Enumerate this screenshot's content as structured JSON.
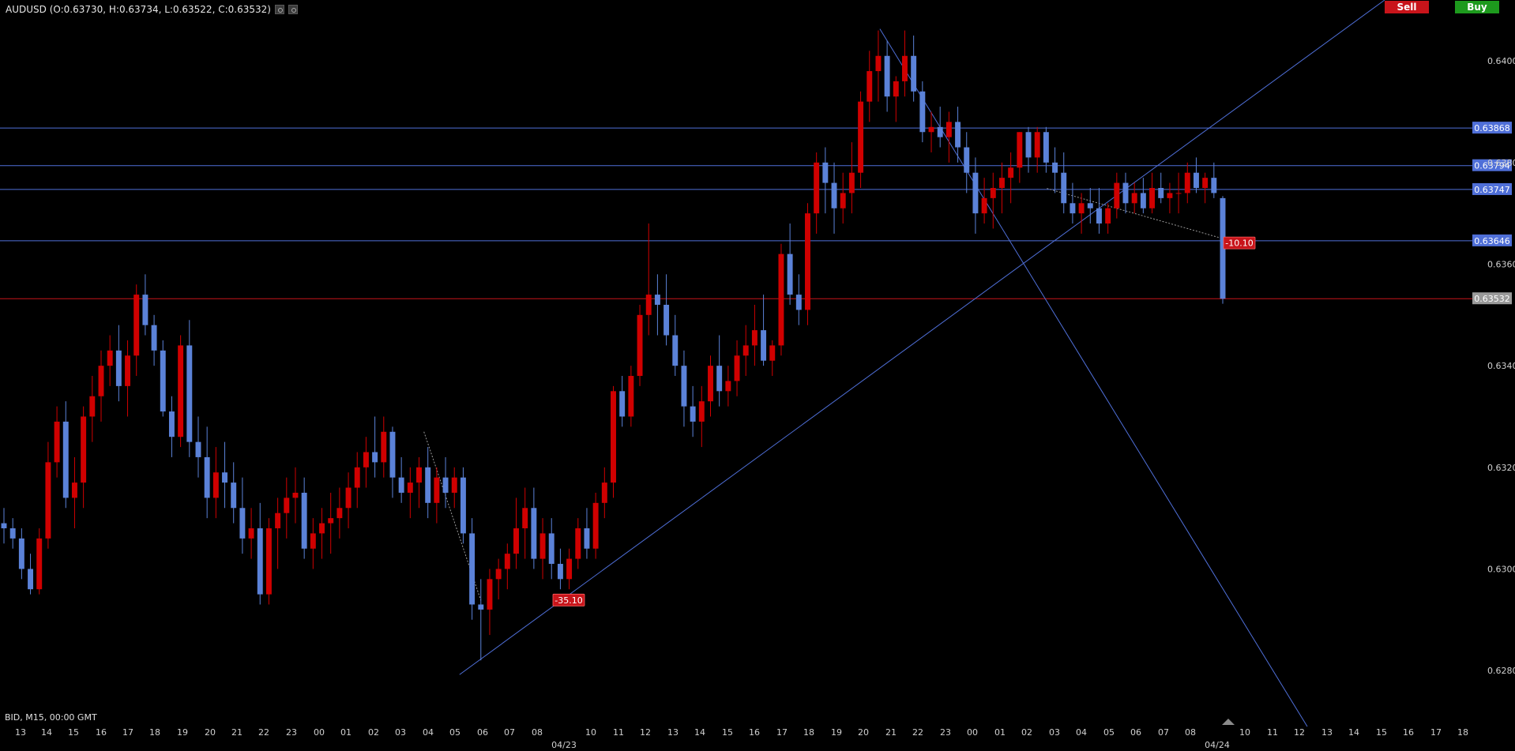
{
  "header": {
    "symbol_ohlc": "AUDUSD (O:0.63730, H:0.63734, L:0.63522, C:0.63532)",
    "icons": [
      "settings-icon",
      "settings-icon"
    ]
  },
  "buttons": {
    "sell": "Sell",
    "buy": "Buy"
  },
  "footer": {
    "info": "BID, M15, 00:00 GMT"
  },
  "colors": {
    "bull": "#d00000",
    "bear": "#5b82d8",
    "hline": "#4f6fd8",
    "price_line": "#c8141a",
    "trend": "#4f6fd8"
  },
  "chart_data": {
    "type": "candlestick",
    "symbol": "AUDUSD",
    "timeframe": "M15",
    "ylim": [
      0.6271,
      0.6412
    ],
    "y_ticks": [
      "0.64000",
      "0.63800",
      "0.63600",
      "0.63400",
      "0.63200",
      "0.63000",
      "0.62800"
    ],
    "y_tick_values": [
      0.64,
      0.638,
      0.636,
      0.634,
      0.632,
      0.63,
      0.628
    ],
    "x_ticks": [
      {
        "label": "13",
        "x": 26
      },
      {
        "label": "14",
        "x": 59
      },
      {
        "label": "15",
        "x": 93
      },
      {
        "label": "16",
        "x": 128
      },
      {
        "label": "17",
        "x": 162
      },
      {
        "label": "18",
        "x": 196
      },
      {
        "label": "19",
        "x": 231
      },
      {
        "label": "20",
        "x": 266
      },
      {
        "label": "21",
        "x": 300
      },
      {
        "label": "22",
        "x": 334
      },
      {
        "label": "23",
        "x": 369
      },
      {
        "label": "00",
        "x": 404
      },
      {
        "label": "01",
        "x": 438
      },
      {
        "label": "02",
        "x": 473
      },
      {
        "label": "03",
        "x": 507
      },
      {
        "label": "04",
        "x": 542
      },
      {
        "label": "05",
        "x": 576
      },
      {
        "label": "06",
        "x": 611
      },
      {
        "label": "07",
        "x": 645
      },
      {
        "label": "08",
        "x": 680
      },
      {
        "label": "10",
        "x": 748
      },
      {
        "label": "11",
        "x": 783
      },
      {
        "label": "12",
        "x": 817
      },
      {
        "label": "13",
        "x": 852
      },
      {
        "label": "14",
        "x": 886
      },
      {
        "label": "15",
        "x": 921
      },
      {
        "label": "16",
        "x": 955
      },
      {
        "label": "17",
        "x": 990
      },
      {
        "label": "18",
        "x": 1024
      },
      {
        "label": "19",
        "x": 1059
      },
      {
        "label": "20",
        "x": 1093
      },
      {
        "label": "21",
        "x": 1128
      },
      {
        "label": "22",
        "x": 1162
      },
      {
        "label": "23",
        "x": 1197
      },
      {
        "label": "00",
        "x": 1231
      },
      {
        "label": "01",
        "x": 1266
      },
      {
        "label": "02",
        "x": 1300
      },
      {
        "label": "03",
        "x": 1335
      },
      {
        "label": "04",
        "x": 1369
      },
      {
        "label": "05",
        "x": 1404
      },
      {
        "label": "06",
        "x": 1438
      },
      {
        "label": "07",
        "x": 1473
      },
      {
        "label": "08",
        "x": 1507
      },
      {
        "label": "10",
        "x": 1576
      },
      {
        "label": "11",
        "x": 1611
      },
      {
        "label": "12",
        "x": 1645
      },
      {
        "label": "13",
        "x": 1680
      },
      {
        "label": "14",
        "x": 1714
      },
      {
        "label": "15",
        "x": 1749
      },
      {
        "label": "16",
        "x": 1783
      },
      {
        "label": "17",
        "x": 1818
      },
      {
        "label": "18",
        "x": 1852
      }
    ],
    "date_labels": [
      {
        "label": "04/23",
        "x": 714
      },
      {
        "label": "04/24",
        "x": 1541
      }
    ],
    "hlines": [
      {
        "value": 0.63868,
        "label": "0.63868"
      },
      {
        "value": 0.63794,
        "label": "0.63794"
      },
      {
        "value": 0.63747,
        "label": "0.63747"
      },
      {
        "value": 0.63646,
        "label": "0.63646"
      }
    ],
    "current_price": {
      "value": 0.63532,
      "label": "0.63532"
    },
    "annotations": [
      {
        "text": "-35.10",
        "x": 720,
        "price": 0.62938
      },
      {
        "text": "-10.10",
        "x": 1569,
        "price": 0.63641
      }
    ],
    "candles": [
      [
        0.6309,
        0.6312,
        0.6305,
        0.6308
      ],
      [
        0.6308,
        0.631,
        0.6304,
        0.6306
      ],
      [
        0.6306,
        0.6308,
        0.6298,
        0.63
      ],
      [
        0.63,
        0.6303,
        0.6295,
        0.6296
      ],
      [
        0.6296,
        0.6308,
        0.6295,
        0.6306
      ],
      [
        0.6306,
        0.6325,
        0.6304,
        0.6321
      ],
      [
        0.6321,
        0.6332,
        0.6318,
        0.6329
      ],
      [
        0.6329,
        0.6333,
        0.6312,
        0.6314
      ],
      [
        0.6314,
        0.6322,
        0.6308,
        0.6317
      ],
      [
        0.6317,
        0.6332,
        0.6312,
        0.633
      ],
      [
        0.633,
        0.6338,
        0.6325,
        0.6334
      ],
      [
        0.6334,
        0.6343,
        0.6329,
        0.634
      ],
      [
        0.634,
        0.6346,
        0.6336,
        0.6343
      ],
      [
        0.6343,
        0.6348,
        0.6333,
        0.6336
      ],
      [
        0.6336,
        0.6345,
        0.633,
        0.6342
      ],
      [
        0.6342,
        0.6356,
        0.6338,
        0.6354
      ],
      [
        0.6354,
        0.6358,
        0.6346,
        0.6348
      ],
      [
        0.6348,
        0.635,
        0.634,
        0.6343
      ],
      [
        0.6343,
        0.6345,
        0.633,
        0.6331
      ],
      [
        0.6331,
        0.6334,
        0.6322,
        0.6326
      ],
      [
        0.6326,
        0.6346,
        0.6324,
        0.6344
      ],
      [
        0.6344,
        0.6349,
        0.6322,
        0.6325
      ],
      [
        0.6325,
        0.633,
        0.6318,
        0.6322
      ],
      [
        0.6322,
        0.6328,
        0.631,
        0.6314
      ],
      [
        0.6314,
        0.6324,
        0.631,
        0.6319
      ],
      [
        0.6319,
        0.6325,
        0.6312,
        0.6317
      ],
      [
        0.6317,
        0.6321,
        0.6309,
        0.6312
      ],
      [
        0.6312,
        0.6318,
        0.6303,
        0.6306
      ],
      [
        0.6306,
        0.6312,
        0.6302,
        0.6308
      ],
      [
        0.6308,
        0.6313,
        0.6293,
        0.6295
      ],
      [
        0.6295,
        0.631,
        0.6293,
        0.6308
      ],
      [
        0.6308,
        0.6314,
        0.63,
        0.6311
      ],
      [
        0.6311,
        0.6318,
        0.6306,
        0.6314
      ],
      [
        0.6314,
        0.632,
        0.6309,
        0.6315
      ],
      [
        0.6315,
        0.6318,
        0.6302,
        0.6304
      ],
      [
        0.6304,
        0.631,
        0.63,
        0.6307
      ],
      [
        0.6307,
        0.6312,
        0.6302,
        0.6309
      ],
      [
        0.6309,
        0.6315,
        0.6303,
        0.631
      ],
      [
        0.631,
        0.6316,
        0.6306,
        0.6312
      ],
      [
        0.6312,
        0.6319,
        0.6308,
        0.6316
      ],
      [
        0.6316,
        0.6323,
        0.6312,
        0.632
      ],
      [
        0.632,
        0.6326,
        0.6316,
        0.6323
      ],
      [
        0.6323,
        0.633,
        0.6318,
        0.6321
      ],
      [
        0.6321,
        0.633,
        0.6318,
        0.6327
      ],
      [
        0.6327,
        0.6328,
        0.6314,
        0.6318
      ],
      [
        0.6318,
        0.6322,
        0.6313,
        0.6315
      ],
      [
        0.6315,
        0.632,
        0.631,
        0.6317
      ],
      [
        0.6317,
        0.6322,
        0.6312,
        0.632
      ],
      [
        0.632,
        0.6324,
        0.631,
        0.6313
      ],
      [
        0.6313,
        0.632,
        0.6309,
        0.6318
      ],
      [
        0.6318,
        0.6322,
        0.6312,
        0.6315
      ],
      [
        0.6315,
        0.632,
        0.6312,
        0.6318
      ],
      [
        0.6318,
        0.632,
        0.6305,
        0.6307
      ],
      [
        0.6307,
        0.631,
        0.629,
        0.6293
      ],
      [
        0.6293,
        0.6298,
        0.6282,
        0.6292
      ],
      [
        0.6292,
        0.63,
        0.6287,
        0.6298
      ],
      [
        0.6298,
        0.6302,
        0.6294,
        0.63
      ],
      [
        0.63,
        0.6305,
        0.6296,
        0.6303
      ],
      [
        0.6303,
        0.6314,
        0.63,
        0.6308
      ],
      [
        0.6308,
        0.6316,
        0.6302,
        0.6312
      ],
      [
        0.6312,
        0.6316,
        0.63,
        0.6302
      ],
      [
        0.6302,
        0.631,
        0.6298,
        0.6307
      ],
      [
        0.6307,
        0.631,
        0.6298,
        0.6301
      ],
      [
        0.6301,
        0.6304,
        0.6296,
        0.6298
      ],
      [
        0.6298,
        0.6304,
        0.6296,
        0.6302
      ],
      [
        0.6302,
        0.631,
        0.63,
        0.6308
      ],
      [
        0.6308,
        0.6312,
        0.6302,
        0.6304
      ],
      [
        0.6304,
        0.6315,
        0.6302,
        0.6313
      ],
      [
        0.6313,
        0.632,
        0.631,
        0.6317
      ],
      [
        0.6317,
        0.6336,
        0.6314,
        0.6335
      ],
      [
        0.6335,
        0.6338,
        0.6328,
        0.633
      ],
      [
        0.633,
        0.634,
        0.6328,
        0.6338
      ],
      [
        0.6338,
        0.6352,
        0.6336,
        0.635
      ],
      [
        0.635,
        0.6368,
        0.6346,
        0.6354
      ],
      [
        0.6354,
        0.6358,
        0.6346,
        0.6352
      ],
      [
        0.6352,
        0.6358,
        0.6344,
        0.6346
      ],
      [
        0.6346,
        0.635,
        0.6338,
        0.634
      ],
      [
        0.634,
        0.6343,
        0.6328,
        0.6332
      ],
      [
        0.6332,
        0.6336,
        0.6326,
        0.6329
      ],
      [
        0.6329,
        0.6336,
        0.6324,
        0.6333
      ],
      [
        0.6333,
        0.6342,
        0.633,
        0.634
      ],
      [
        0.634,
        0.6346,
        0.6332,
        0.6335
      ],
      [
        0.6335,
        0.634,
        0.6332,
        0.6337
      ],
      [
        0.6337,
        0.6345,
        0.6334,
        0.6342
      ],
      [
        0.6342,
        0.6348,
        0.6338,
        0.6344
      ],
      [
        0.6344,
        0.6352,
        0.634,
        0.6347
      ],
      [
        0.6347,
        0.6354,
        0.634,
        0.6341
      ],
      [
        0.6341,
        0.6345,
        0.6338,
        0.6344
      ],
      [
        0.6344,
        0.6364,
        0.6342,
        0.6362
      ],
      [
        0.6362,
        0.6368,
        0.6352,
        0.6354
      ],
      [
        0.6354,
        0.6358,
        0.6348,
        0.6351
      ],
      [
        0.6351,
        0.6372,
        0.6348,
        0.637
      ],
      [
        0.637,
        0.6382,
        0.6366,
        0.638
      ],
      [
        0.638,
        0.6383,
        0.637,
        0.6376
      ],
      [
        0.6376,
        0.638,
        0.6366,
        0.6371
      ],
      [
        0.6371,
        0.6378,
        0.6368,
        0.6374
      ],
      [
        0.6374,
        0.6384,
        0.637,
        0.6378
      ],
      [
        0.6378,
        0.6394,
        0.6375,
        0.6392
      ],
      [
        0.6392,
        0.6402,
        0.6388,
        0.6398
      ],
      [
        0.6398,
        0.6406,
        0.6392,
        0.6401
      ],
      [
        0.6401,
        0.6404,
        0.639,
        0.6393
      ],
      [
        0.6393,
        0.6397,
        0.6388,
        0.6396
      ],
      [
        0.6396,
        0.6406,
        0.6393,
        0.6401
      ],
      [
        0.6401,
        0.6405,
        0.6392,
        0.6394
      ],
      [
        0.6394,
        0.6396,
        0.6384,
        0.6386
      ],
      [
        0.6386,
        0.639,
        0.6382,
        0.6387
      ],
      [
        0.6387,
        0.6391,
        0.6383,
        0.6385
      ],
      [
        0.6385,
        0.639,
        0.638,
        0.6388
      ],
      [
        0.6388,
        0.6391,
        0.638,
        0.6383
      ],
      [
        0.6383,
        0.6386,
        0.6374,
        0.6378
      ],
      [
        0.6378,
        0.6381,
        0.6366,
        0.637
      ],
      [
        0.637,
        0.6377,
        0.6368,
        0.6373
      ],
      [
        0.6373,
        0.6378,
        0.6367,
        0.6375
      ],
      [
        0.6375,
        0.638,
        0.637,
        0.6377
      ],
      [
        0.6377,
        0.6382,
        0.6372,
        0.6379
      ],
      [
        0.6379,
        0.6386,
        0.6376,
        0.6386
      ],
      [
        0.6386,
        0.6387,
        0.6378,
        0.6381
      ],
      [
        0.6381,
        0.6387,
        0.6378,
        0.6386
      ],
      [
        0.6386,
        0.6387,
        0.6378,
        0.638
      ],
      [
        0.638,
        0.6383,
        0.6374,
        0.6378
      ],
      [
        0.6378,
        0.6382,
        0.637,
        0.6372
      ],
      [
        0.6372,
        0.6376,
        0.6368,
        0.637
      ],
      [
        0.637,
        0.6374,
        0.6366,
        0.6372
      ],
      [
        0.6372,
        0.6375,
        0.6368,
        0.6371
      ],
      [
        0.6371,
        0.6375,
        0.6366,
        0.6368
      ],
      [
        0.6368,
        0.6372,
        0.6366,
        0.6371
      ],
      [
        0.6371,
        0.6378,
        0.6369,
        0.6376
      ],
      [
        0.6376,
        0.6378,
        0.637,
        0.6372
      ],
      [
        0.6372,
        0.6376,
        0.637,
        0.6374
      ],
      [
        0.6374,
        0.6377,
        0.637,
        0.6371
      ],
      [
        0.6371,
        0.6378,
        0.637,
        0.6375
      ],
      [
        0.6375,
        0.6378,
        0.6372,
        0.6373
      ],
      [
        0.6373,
        0.6376,
        0.637,
        0.6374
      ],
      [
        0.6374,
        0.6378,
        0.637,
        0.6374
      ],
      [
        0.6374,
        0.638,
        0.6372,
        0.6378
      ],
      [
        0.6378,
        0.6381,
        0.6374,
        0.6375
      ],
      [
        0.6375,
        0.6378,
        0.6372,
        0.6377
      ],
      [
        0.6377,
        0.638,
        0.6373,
        0.6374
      ],
      [
        0.6373,
        0.63734,
        0.63522,
        0.63532
      ]
    ]
  }
}
